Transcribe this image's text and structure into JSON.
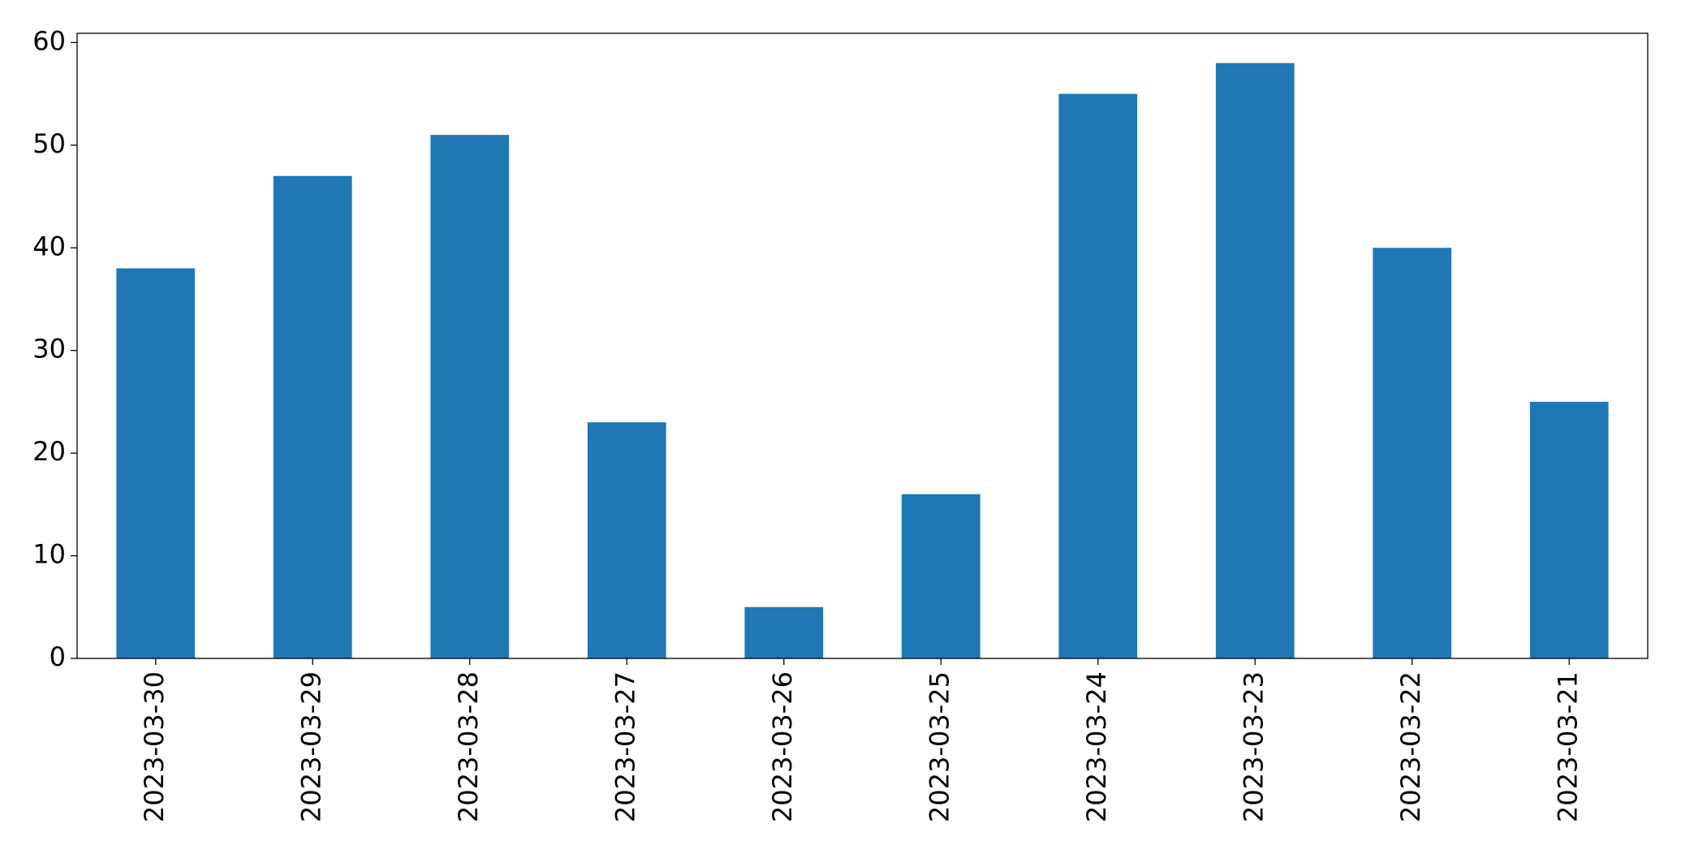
{
  "chart_data": {
    "type": "bar",
    "categories": [
      "2023-03-30",
      "2023-03-29",
      "2023-03-28",
      "2023-03-27",
      "2023-03-26",
      "2023-03-25",
      "2023-03-24",
      "2023-03-23",
      "2023-03-22",
      "2023-03-21"
    ],
    "values": [
      38,
      47,
      51,
      23,
      5,
      16,
      55,
      58,
      40,
      25
    ],
    "color": "#1f77b4",
    "ylim": [
      0,
      60.9
    ],
    "yticks": [
      0,
      10,
      20,
      30,
      40,
      50,
      60
    ],
    "grid": false
  }
}
